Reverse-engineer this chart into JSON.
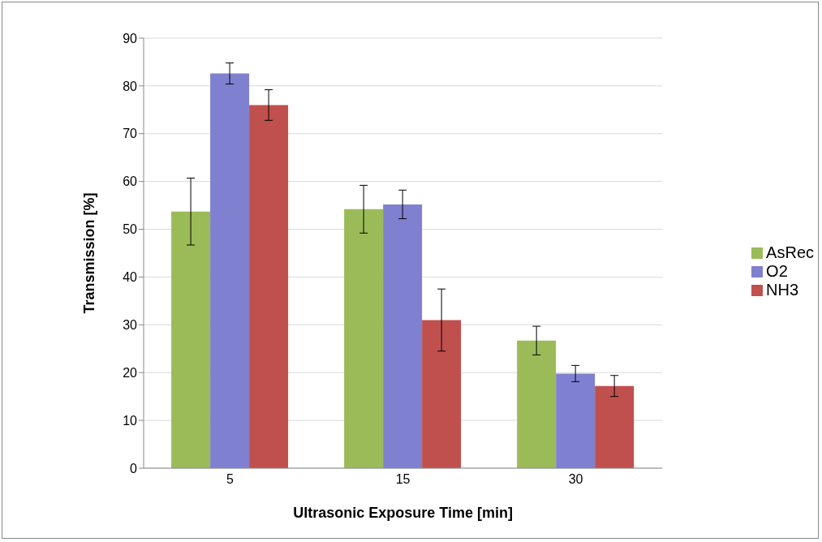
{
  "chart_data": {
    "type": "bar",
    "xlabel": "Ultrasonic Exposure Time [min]",
    "ylabel": "Transmission [%]",
    "categories": [
      "5",
      "15",
      "30"
    ],
    "series": [
      {
        "name": "AsRec",
        "color": "#9bbb59",
        "values": [
          53.7,
          54.2,
          26.7
        ],
        "errors": [
          7,
          5,
          3
        ]
      },
      {
        "name": "O2",
        "color": "#8080d0",
        "values": [
          82.6,
          55.2,
          19.8
        ],
        "errors": [
          2.2,
          3,
          1.7
        ]
      },
      {
        "name": "NH3",
        "color": "#c0504d",
        "values": [
          76,
          31,
          17.2
        ],
        "errors": [
          3.2,
          6.5,
          2.2
        ]
      }
    ],
    "ylim": [
      0,
      90
    ],
    "yticks": [
      0,
      10,
      20,
      30,
      40,
      50,
      60,
      70,
      80,
      90
    ],
    "grid": "y",
    "legend": "right"
  }
}
